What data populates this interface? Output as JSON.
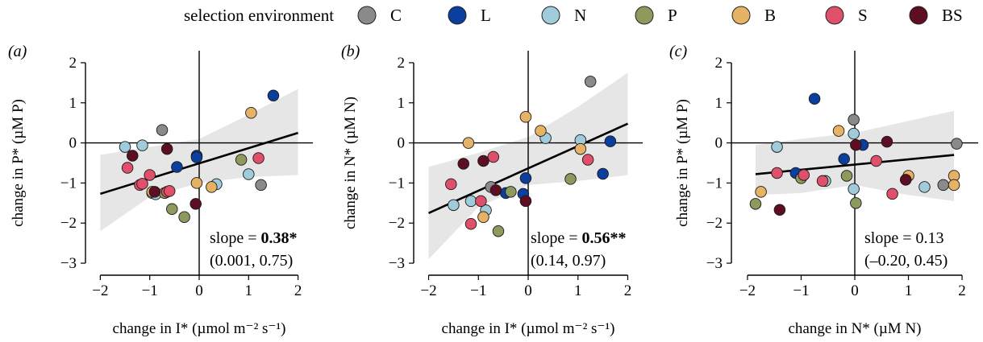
{
  "legend": {
    "title": "selection environment",
    "items": [
      {
        "label": "C",
        "color": "#8a8a8a"
      },
      {
        "label": "L",
        "color": "#0b3f9e"
      },
      {
        "label": "N",
        "color": "#9fcbdb"
      },
      {
        "label": "P",
        "color": "#8e9a5d"
      },
      {
        "label": "B",
        "color": "#e6b266"
      },
      {
        "label": "S",
        "color": "#e0506a"
      },
      {
        "label": "BS",
        "color": "#5e0e22"
      }
    ]
  },
  "chart_data": [
    {
      "type": "scatter",
      "panel_label": "(a)",
      "xlabel": "change in I* (µmol m⁻² s⁻¹)",
      "ylabel": "change in P* (µM P)",
      "xlim": [
        -2.3,
        2.3
      ],
      "ylim": [
        -3.3,
        2.3
      ],
      "xticks": [
        "−2",
        "−1",
        "0",
        "1",
        "2"
      ],
      "yticks": [
        "2",
        "1",
        "0",
        "−1",
        "−2",
        "−3"
      ],
      "slope_label": "slope = ",
      "slope_value": "0.38*",
      "ci": "(0.001, 0.75)",
      "fit": {
        "x": [
          -2,
          2
        ],
        "y": [
          -1.27,
          0.25
        ]
      },
      "band": {
        "x": [
          -2,
          -1,
          0,
          1,
          2
        ],
        "upper": [
          -0.3,
          -0.1,
          0.1,
          0.7,
          1.35
        ],
        "lower": [
          -2.2,
          -1.35,
          -1.0,
          -0.85,
          -0.8
        ]
      },
      "points": [
        {
          "x": -0.75,
          "y": 0.32,
          "env": "C"
        },
        {
          "x": 1.25,
          "y": -1.05,
          "env": "C"
        },
        {
          "x": 1.5,
          "y": 1.18,
          "env": "L"
        },
        {
          "x": -0.05,
          "y": -0.32,
          "env": "L"
        },
        {
          "x": -0.05,
          "y": -0.36,
          "env": "L"
        },
        {
          "x": -0.45,
          "y": -0.6,
          "env": "L"
        },
        {
          "x": -1.5,
          "y": -0.1,
          "env": "N"
        },
        {
          "x": -1.15,
          "y": -0.06,
          "env": "N"
        },
        {
          "x": -0.95,
          "y": -1.25,
          "env": "N"
        },
        {
          "x": -0.88,
          "y": -1.28,
          "env": "N"
        },
        {
          "x": 0.35,
          "y": -1.03,
          "env": "N"
        },
        {
          "x": 1.0,
          "y": -0.78,
          "env": "N"
        },
        {
          "x": -0.55,
          "y": -1.65,
          "env": "P"
        },
        {
          "x": -0.3,
          "y": -1.85,
          "env": "P"
        },
        {
          "x": 0.85,
          "y": -0.42,
          "env": "P"
        },
        {
          "x": -0.7,
          "y": -1.25,
          "env": "P"
        },
        {
          "x": 1.05,
          "y": 0.75,
          "env": "B"
        },
        {
          "x": 0.25,
          "y": -1.1,
          "env": "B"
        },
        {
          "x": -0.05,
          "y": -1.0,
          "env": "B"
        },
        {
          "x": -0.95,
          "y": -1.22,
          "env": "B"
        },
        {
          "x": -1.45,
          "y": -0.62,
          "env": "S"
        },
        {
          "x": -1.2,
          "y": -1.05,
          "env": "S"
        },
        {
          "x": -1.0,
          "y": -0.8,
          "env": "S"
        },
        {
          "x": -0.65,
          "y": -1.22,
          "env": "S"
        },
        {
          "x": 1.2,
          "y": -0.38,
          "env": "S"
        },
        {
          "x": -1.15,
          "y": -1.02,
          "env": "S"
        },
        {
          "x": -0.6,
          "y": -1.2,
          "env": "S"
        },
        {
          "x": -1.35,
          "y": -0.32,
          "env": "BS"
        },
        {
          "x": -0.65,
          "y": -0.15,
          "env": "BS"
        },
        {
          "x": -0.9,
          "y": -1.22,
          "env": "BS"
        },
        {
          "x": -0.07,
          "y": -1.52,
          "env": "BS"
        }
      ]
    },
    {
      "type": "scatter",
      "panel_label": "(b)",
      "xlabel": "change in I* (µmol m⁻² s⁻¹)",
      "ylabel": "change in N* (µM N)",
      "xlim": [
        -2.3,
        2.3
      ],
      "ylim": [
        -3.3,
        2.3
      ],
      "xticks": [
        "−2",
        "−1",
        "0",
        "1",
        "2"
      ],
      "yticks": [
        "2",
        "1",
        "0",
        "−1",
        "−2",
        "−3"
      ],
      "slope_label": "slope = ",
      "slope_value": "0.56**",
      "ci": "(0.14, 0.97)",
      "fit": {
        "x": [
          -2,
          2
        ],
        "y": [
          -1.75,
          0.48
        ]
      },
      "band": {
        "x": [
          -2,
          -1,
          0,
          1,
          2
        ],
        "upper": [
          -0.6,
          -0.25,
          0.15,
          0.9,
          1.75
        ],
        "lower": [
          -2.9,
          -1.6,
          -1.05,
          -0.95,
          -0.8
        ]
      },
      "points": [
        {
          "x": 1.25,
          "y": 1.53,
          "env": "C"
        },
        {
          "x": -0.75,
          "y": -1.1,
          "env": "C"
        },
        {
          "x": 1.65,
          "y": 0.04,
          "env": "L"
        },
        {
          "x": 1.5,
          "y": -0.77,
          "env": "L"
        },
        {
          "x": -0.05,
          "y": -0.88,
          "env": "L"
        },
        {
          "x": -0.45,
          "y": -1.25,
          "env": "L"
        },
        {
          "x": -0.1,
          "y": -1.27,
          "env": "L"
        },
        {
          "x": -1.5,
          "y": -1.55,
          "env": "N"
        },
        {
          "x": -1.15,
          "y": -1.45,
          "env": "N"
        },
        {
          "x": -0.85,
          "y": -1.68,
          "env": "N"
        },
        {
          "x": 0.35,
          "y": 0.12,
          "env": "N"
        },
        {
          "x": 1.05,
          "y": 0.07,
          "env": "N"
        },
        {
          "x": -0.6,
          "y": -2.2,
          "env": "P"
        },
        {
          "x": 0.85,
          "y": -0.9,
          "env": "P"
        },
        {
          "x": -0.35,
          "y": -1.22,
          "env": "P"
        },
        {
          "x": -0.05,
          "y": 0.65,
          "env": "B"
        },
        {
          "x": 0.25,
          "y": 0.3,
          "env": "B"
        },
        {
          "x": 1.05,
          "y": -0.15,
          "env": "B"
        },
        {
          "x": -1.2,
          "y": 0.0,
          "env": "B"
        },
        {
          "x": -0.9,
          "y": -1.85,
          "env": "B"
        },
        {
          "x": -1.55,
          "y": -1.03,
          "env": "S"
        },
        {
          "x": -1.15,
          "y": -2.02,
          "env": "S"
        },
        {
          "x": -0.95,
          "y": -1.45,
          "env": "S"
        },
        {
          "x": -0.7,
          "y": -0.35,
          "env": "S"
        },
        {
          "x": 1.2,
          "y": -0.42,
          "env": "S"
        },
        {
          "x": -1.3,
          "y": -0.52,
          "env": "BS"
        },
        {
          "x": -0.9,
          "y": -0.45,
          "env": "BS"
        },
        {
          "x": -0.65,
          "y": -1.18,
          "env": "BS"
        },
        {
          "x": -0.05,
          "y": -1.45,
          "env": "BS"
        }
      ]
    },
    {
      "type": "scatter",
      "panel_label": "(c)",
      "xlabel": "change in N* (µM N)",
      "ylabel": "change in P* (µM P)",
      "xlim": [
        -2.3,
        2.3
      ],
      "ylim": [
        -3.3,
        2.3
      ],
      "xticks": [
        "−2",
        "−1",
        "0",
        "1",
        "2"
      ],
      "yticks": [
        "2",
        "1",
        "0",
        "−1",
        "−2",
        "−3"
      ],
      "slope_label": "slope = ",
      "slope_value": "0.13",
      "ci": "(–0.20, 0.45)",
      "fit": {
        "x": [
          -1.85,
          1.85
        ],
        "y": [
          -0.78,
          -0.3
        ]
      },
      "band": {
        "x": [
          -1.85,
          -1,
          0,
          1,
          1.85
        ],
        "upper": [
          -0.05,
          0.1,
          0.25,
          0.55,
          0.8
        ],
        "lower": [
          -1.3,
          -1.25,
          -1.05,
          -1.3,
          -1.45
        ]
      },
      "points": [
        {
          "x": -0.02,
          "y": 0.58,
          "env": "C"
        },
        {
          "x": 1.9,
          "y": -0.02,
          "env": "C"
        },
        {
          "x": 1.65,
          "y": -1.05,
          "env": "C"
        },
        {
          "x": -0.75,
          "y": 1.1,
          "env": "L"
        },
        {
          "x": 0.15,
          "y": -0.05,
          "env": "L"
        },
        {
          "x": -0.2,
          "y": -0.4,
          "env": "L"
        },
        {
          "x": -1.1,
          "y": -0.75,
          "env": "L"
        },
        {
          "x": -1.45,
          "y": -0.1,
          "env": "N"
        },
        {
          "x": -0.02,
          "y": 0.23,
          "env": "N"
        },
        {
          "x": -0.02,
          "y": -1.15,
          "env": "N"
        },
        {
          "x": -0.55,
          "y": -0.95,
          "env": "N"
        },
        {
          "x": 1.3,
          "y": -1.1,
          "env": "N"
        },
        {
          "x": -1.85,
          "y": -1.52,
          "env": "P"
        },
        {
          "x": 0.02,
          "y": -1.5,
          "env": "P"
        },
        {
          "x": -0.15,
          "y": -0.82,
          "env": "P"
        },
        {
          "x": -1.0,
          "y": -0.88,
          "env": "P"
        },
        {
          "x": -0.3,
          "y": 0.3,
          "env": "B"
        },
        {
          "x": 1.0,
          "y": -0.82,
          "env": "B"
        },
        {
          "x": 1.85,
          "y": -0.82,
          "env": "B"
        },
        {
          "x": 1.85,
          "y": -1.05,
          "env": "B"
        },
        {
          "x": -1.75,
          "y": -1.22,
          "env": "B"
        },
        {
          "x": -1.45,
          "y": -0.75,
          "env": "S"
        },
        {
          "x": -0.95,
          "y": -0.8,
          "env": "S"
        },
        {
          "x": -0.6,
          "y": -0.95,
          "env": "S"
        },
        {
          "x": 0.4,
          "y": -0.45,
          "env": "S"
        },
        {
          "x": 0.7,
          "y": -1.27,
          "env": "S"
        },
        {
          "x": -1.4,
          "y": -1.67,
          "env": "BS"
        },
        {
          "x": 0.6,
          "y": 0.03,
          "env": "BS"
        },
        {
          "x": 0.95,
          "y": -0.92,
          "env": "BS"
        },
        {
          "x": 0.02,
          "y": -0.05,
          "env": "BS"
        }
      ]
    }
  ]
}
